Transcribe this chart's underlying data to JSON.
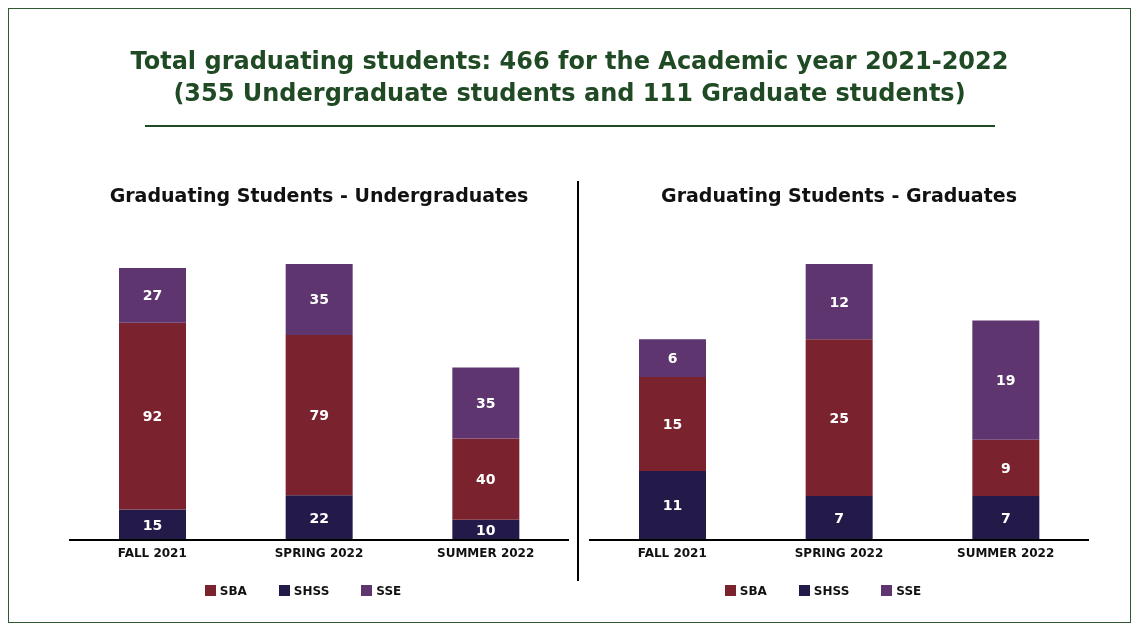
{
  "chart_data": [
    {
      "type": "other",
      "title": "Total graduating students: 466 for the Academic year 2021-2022",
      "subtitle": "(355 Undergraduate students and 111 Graduate students)"
    },
    {
      "type": "bar",
      "title": "Graduating Students - Undergraduates",
      "categories": [
        "FALL 2021",
        "SPRING 2022",
        "SUMMER 2022"
      ],
      "stacked": true,
      "data_labels": true,
      "legend": "bottom",
      "series": [
        {
          "name": "SHSS",
          "color": "#241a4a",
          "values": [
            15,
            22,
            10
          ]
        },
        {
          "name": "SBA",
          "color": "#7a232e",
          "values": [
            92,
            79,
            40
          ]
        },
        {
          "name": "SSE",
          "color": "#5e356e",
          "values": [
            27,
            35,
            35
          ]
        }
      ]
    },
    {
      "type": "bar",
      "title": "Graduating Students - Graduates",
      "categories": [
        "FALL 2021",
        "SPRING 2022",
        "SUMMER 2022"
      ],
      "stacked": true,
      "data_labels": true,
      "legend": "bottom",
      "series": [
        {
          "name": "SHSS",
          "color": "#241a4a",
          "values": [
            11,
            7,
            7
          ]
        },
        {
          "name": "SBA",
          "color": "#7a232e",
          "values": [
            15,
            25,
            9
          ]
        },
        {
          "name": "SSE",
          "color": "#5e356e",
          "values": [
            6,
            12,
            19
          ]
        }
      ]
    }
  ]
}
